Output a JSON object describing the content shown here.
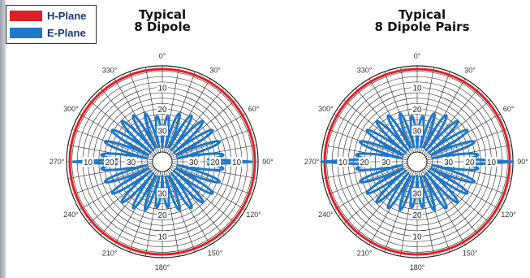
{
  "legend": {
    "items": [
      {
        "label": "H-Plane",
        "color": "#e02027"
      },
      {
        "label": "E-Plane",
        "color": "#1f78c8"
      }
    ]
  },
  "chart_data": [
    {
      "type": "polar",
      "title_line1": "Typical",
      "title_line2": "8 Dipole",
      "angle_labels": [
        "0°",
        "30°",
        "60°",
        "90°",
        "120°",
        "150°",
        "180°",
        "210°",
        "240°",
        "270°",
        "300°",
        "330°"
      ],
      "ring_labels": [
        "10",
        "20",
        "30"
      ],
      "series": [
        {
          "name": "H-Plane",
          "color": "#e02027",
          "shape": "circle",
          "level_db": -1.5
        },
        {
          "name": "E-Plane",
          "color": "#1f78c8",
          "main_lobes_deg": [
            90,
            270
          ],
          "main_lobe_db": -3,
          "side_lobe_db": -16
        }
      ]
    },
    {
      "type": "polar",
      "title_line1": "Typical",
      "title_line2": "8 Dipole Pairs",
      "angle_labels": [
        "0°",
        "30°",
        "60°",
        "90°",
        "120°",
        "150°",
        "180°",
        "210°",
        "240°",
        "270°",
        "300°",
        "330°"
      ],
      "ring_labels": [
        "10",
        "20",
        "30"
      ],
      "series": [
        {
          "name": "H-Plane",
          "color": "#e02027",
          "shape": "circle",
          "level_db": -1.5
        },
        {
          "name": "E-Plane",
          "color": "#1f78c8",
          "main_lobes_deg": [
            90,
            270
          ],
          "main_lobe_db": 0,
          "side_lobe_db": -16
        }
      ]
    }
  ]
}
